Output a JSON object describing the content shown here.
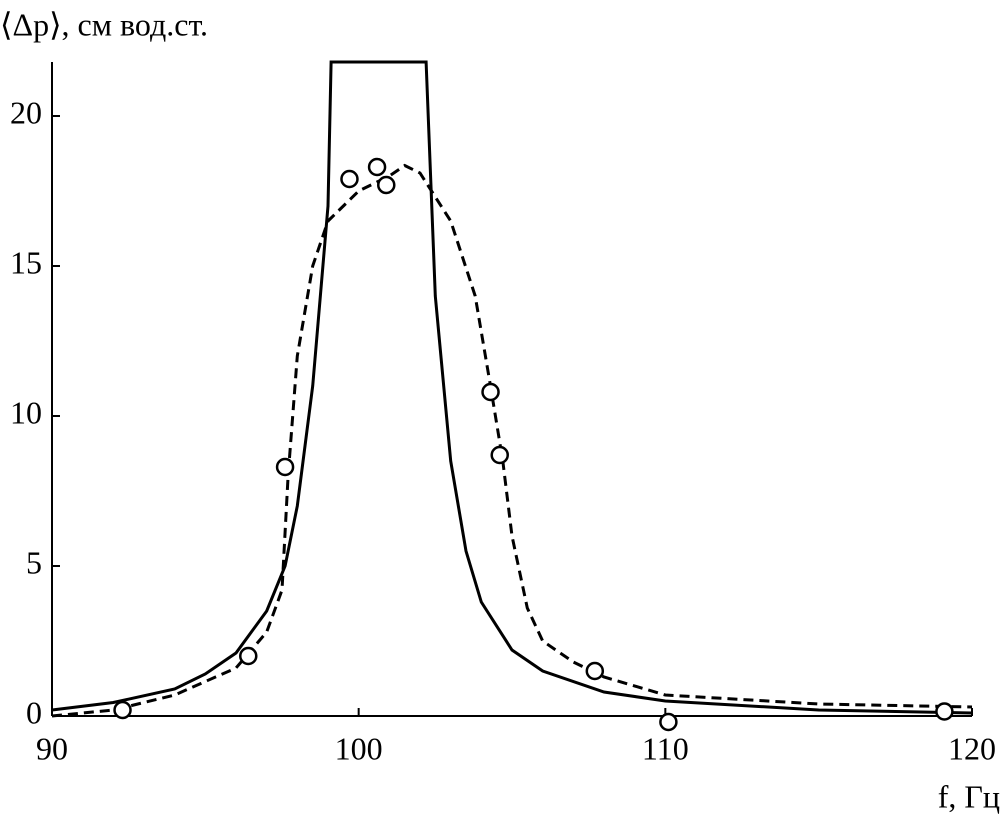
{
  "chart_data": {
    "type": "line",
    "y_label": "⟨Δp⟩, см вод.ст.",
    "x_label": "f, Гц",
    "xlim": [
      90,
      120
    ],
    "xticks": [
      90,
      100,
      110,
      120
    ],
    "ylim": [
      0,
      21.8
    ],
    "yticks": [
      0,
      5,
      10,
      15,
      20
    ],
    "series": [
      {
        "style": "solid",
        "color": "#000000",
        "x": [
          90,
          92,
          94,
          95,
          96,
          97,
          97.6,
          98,
          98.5,
          99,
          99.1,
          102.2,
          102.5,
          103,
          103.5,
          104,
          105,
          106,
          108,
          110,
          115,
          120
        ],
        "values": [
          0.2,
          0.45,
          0.9,
          1.4,
          2.1,
          3.5,
          5.0,
          7.0,
          11,
          17,
          21.8,
          21.8,
          14,
          8.5,
          5.5,
          3.8,
          2.2,
          1.5,
          0.8,
          0.5,
          0.2,
          0.1
        ]
      },
      {
        "style": "dashed",
        "color": "#000000",
        "x": [
          90,
          92,
          94,
          96,
          97,
          97.5,
          97.7,
          98,
          98.5,
          99,
          100,
          101,
          101.5,
          102,
          103,
          103.8,
          104.3,
          104.7,
          105,
          105.5,
          106,
          107,
          108,
          110,
          115,
          120
        ],
        "values": [
          0.0,
          0.2,
          0.7,
          1.6,
          2.8,
          4.2,
          8.0,
          12,
          15,
          16.5,
          17.5,
          18.0,
          18.35,
          18.1,
          16.5,
          14,
          11,
          8.5,
          6,
          3.6,
          2.5,
          1.8,
          1.3,
          0.7,
          0.4,
          0.3
        ]
      }
    ],
    "points": {
      "color": "#000000",
      "x": [
        92.3,
        96.4,
        97.6,
        99.7,
        100.6,
        100.9,
        104.3,
        104.6,
        107.7,
        110.1,
        119.1
      ],
      "values": [
        0.2,
        2.0,
        8.3,
        17.9,
        18.3,
        17.7,
        10.8,
        8.7,
        1.5,
        -0.2,
        0.15
      ]
    }
  }
}
